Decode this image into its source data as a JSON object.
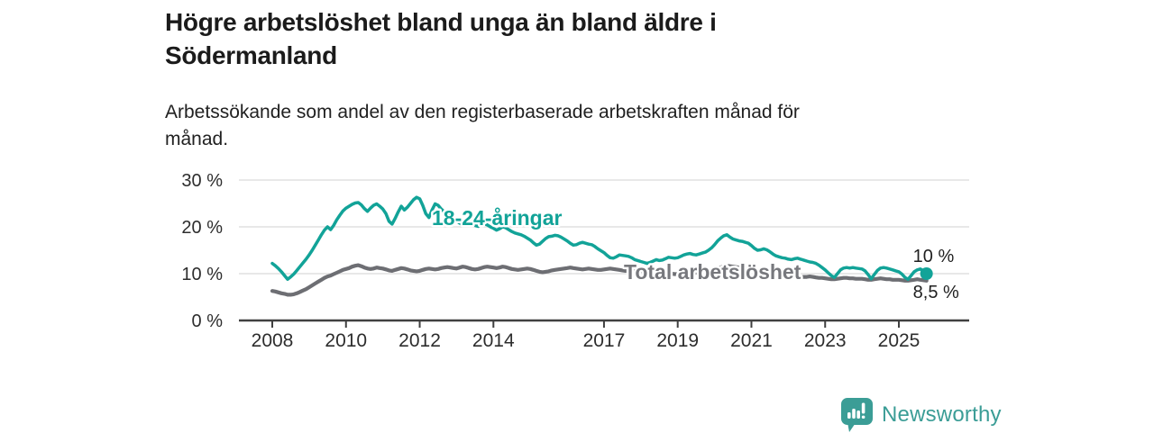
{
  "header": {
    "title_lines": [
      "Högre arbetslöshet bland unga än bland äldre i",
      "Södermanland"
    ],
    "subtitle_lines": [
      "Arbetssökande som andel av den registerbaserade arbetskraften månad för",
      "månad."
    ]
  },
  "footer": {
    "brand": "Newsworthy",
    "brand_color": "#3b9d96",
    "logo_icon": "bar-chart-pin-icon"
  },
  "colors": {
    "background": "#ffffff",
    "grid": "#e4e4e4",
    "axis": "#404040",
    "tick_text": "#2d2d2d",
    "annotation_text": "#1f1f1f"
  },
  "chart_data": {
    "type": "line",
    "title": "Högre arbetslöshet bland unga än bland äldre i Södermanland",
    "subtitle": "Arbetssökande som andel av den registerbaserade arbetskraften månad för månad.",
    "unit": "%",
    "frequency": "monthly",
    "x_start": "2008-01",
    "x_end": "2025-10",
    "x_axis": {
      "tick_labels": [
        "2008",
        "2010",
        "2012",
        "2014",
        "2017",
        "2019",
        "2021",
        "2023",
        "2025"
      ],
      "tick_years": [
        2008,
        2010,
        2012,
        2014,
        2017,
        2019,
        2021,
        2023,
        2025
      ]
    },
    "y_axis": {
      "tick_labels": [
        "0 %",
        "10 %",
        "20 %",
        "30 %"
      ],
      "tick_values": [
        0,
        10,
        20,
        30
      ],
      "ylim": [
        0,
        31
      ],
      "grid": true
    },
    "legend_position": "inline-labels",
    "series": [
      {
        "name": "18-24-åringar",
        "label": {
          "text": "18-24-åringar",
          "color": "#12a398"
        },
        "color": "#12a398",
        "end_label": "10 %",
        "end_value": 10,
        "end_dot": true,
        "values": [
          12.2,
          11.7,
          11.1,
          10.4,
          9.6,
          8.8,
          9.3,
          9.9,
          10.7,
          11.5,
          12.3,
          13.1,
          14.0,
          15.0,
          16.1,
          17.2,
          18.3,
          19.3,
          20.0,
          19.4,
          20.3,
          21.5,
          22.5,
          23.4,
          24.0,
          24.4,
          24.8,
          25.1,
          25.2,
          24.7,
          23.9,
          23.3,
          24.0,
          24.6,
          24.9,
          24.4,
          23.8,
          22.8,
          21.2,
          20.6,
          21.8,
          23.2,
          24.4,
          23.6,
          24.2,
          25.0,
          25.8,
          26.3,
          26.0,
          24.6,
          22.8,
          22.0,
          23.6,
          24.9,
          24.6,
          23.8,
          23.2,
          22.6,
          22.0,
          21.6,
          21.3,
          20.8,
          20.4,
          20.6,
          20.9,
          20.6,
          20.3,
          20.1,
          20.4,
          20.7,
          20.4,
          20.0,
          19.7,
          19.3,
          19.6,
          20.0,
          19.8,
          19.4,
          19.0,
          18.7,
          18.5,
          18.3,
          18.0,
          17.6,
          17.2,
          16.6,
          16.1,
          16.3,
          16.9,
          17.5,
          17.9,
          18.0,
          18.2,
          18.1,
          17.8,
          17.4,
          17.0,
          16.5,
          16.1,
          16.2,
          16.5,
          16.7,
          16.5,
          16.3,
          16.2,
          15.8,
          15.3,
          14.9,
          14.5,
          13.9,
          13.4,
          13.3,
          13.6,
          14.0,
          13.9,
          13.8,
          13.7,
          13.4,
          13.0,
          12.8,
          12.6,
          12.4,
          12.2,
          12.4,
          12.7,
          13.0,
          12.8,
          12.9,
          13.2,
          13.5,
          13.4,
          13.3,
          13.4,
          13.7,
          14.0,
          14.2,
          14.3,
          14.1,
          14.0,
          14.2,
          14.4,
          14.6,
          15.0,
          15.5,
          16.2,
          17.0,
          17.6,
          18.1,
          18.3,
          17.8,
          17.4,
          17.2,
          17.0,
          16.9,
          16.7,
          16.5,
          16.0,
          15.4,
          15.0,
          15.1,
          15.3,
          15.1,
          14.7,
          14.2,
          13.8,
          13.6,
          13.4,
          13.3,
          13.1,
          13.0,
          13.2,
          13.3,
          13.1,
          12.9,
          12.7,
          12.5,
          12.4,
          12.2,
          11.8,
          11.3,
          10.8,
          10.2,
          9.6,
          9.2,
          10.0,
          10.8,
          11.2,
          11.3,
          11.2,
          11.3,
          11.2,
          11.1,
          11.0,
          10.6,
          9.8,
          8.9,
          9.8,
          10.7,
          11.2,
          11.3,
          11.2,
          11.0,
          10.8,
          10.6,
          10.4,
          9.9,
          9.2,
          8.8,
          9.6,
          10.4,
          10.8,
          11.0,
          10.6,
          10.0
        ]
      },
      {
        "name": "Total arbetslöshet",
        "label": {
          "text": "Total arbetslöshet",
          "color": "#77787d"
        },
        "color": "#6d6e73",
        "end_label": "8,5 %",
        "end_value": 8.5,
        "end_dot": false,
        "values": [
          6.3,
          6.2,
          6.0,
          5.8,
          5.7,
          5.5,
          5.5,
          5.6,
          5.8,
          6.1,
          6.4,
          6.7,
          7.1,
          7.5,
          7.9,
          8.3,
          8.7,
          9.1,
          9.4,
          9.6,
          9.9,
          10.2,
          10.5,
          10.8,
          11.0,
          11.2,
          11.5,
          11.7,
          11.8,
          11.6,
          11.3,
          11.1,
          11.0,
          11.1,
          11.3,
          11.2,
          11.1,
          10.9,
          10.7,
          10.6,
          10.8,
          11.0,
          11.2,
          11.1,
          10.9,
          10.7,
          10.6,
          10.5,
          10.6,
          10.8,
          11.0,
          11.1,
          11.0,
          10.9,
          11.0,
          11.2,
          11.3,
          11.4,
          11.3,
          11.2,
          11.1,
          11.3,
          11.5,
          11.4,
          11.2,
          11.0,
          10.9,
          11.0,
          11.2,
          11.4,
          11.5,
          11.4,
          11.3,
          11.2,
          11.3,
          11.5,
          11.4,
          11.2,
          11.0,
          10.9,
          10.8,
          10.9,
          11.0,
          11.1,
          11.0,
          10.8,
          10.6,
          10.4,
          10.3,
          10.4,
          10.5,
          10.7,
          10.8,
          10.9,
          11.0,
          11.1,
          11.2,
          11.3,
          11.2,
          11.1,
          11.0,
          10.9,
          11.0,
          11.1,
          11.0,
          10.9,
          10.8,
          10.8,
          10.9,
          11.0,
          11.1,
          11.0,
          10.9,
          10.8,
          10.7,
          10.6,
          10.6,
          10.7,
          10.8,
          10.7,
          10.6,
          10.4,
          10.3,
          10.2,
          10.1,
          10.0,
          10.0,
          10.1,
          10.2,
          10.1,
          10.0,
          9.9,
          9.9,
          9.8,
          9.8,
          9.9,
          10.0,
          10.1,
          10.2,
          10.3,
          10.3,
          10.4,
          10.5,
          10.6,
          10.8,
          11.0,
          11.3,
          11.6,
          11.7,
          11.6,
          11.5,
          11.4,
          11.3,
          11.2,
          11.1,
          11.0,
          10.9,
          10.7,
          10.5,
          10.3,
          10.1,
          10.0,
          9.9,
          9.8,
          9.7,
          9.6,
          9.5,
          9.4,
          9.4,
          9.3,
          9.3,
          9.2,
          9.2,
          9.3,
          9.3,
          9.4,
          9.3,
          9.2,
          9.1,
          9.1,
          9.0,
          8.9,
          8.8,
          8.8,
          8.9,
          9.0,
          9.1,
          9.1,
          9.0,
          9.0,
          8.9,
          8.9,
          8.9,
          8.8,
          8.7,
          8.7,
          8.8,
          8.9,
          9.0,
          8.9,
          8.8,
          8.8,
          8.7,
          8.7,
          8.7,
          8.6,
          8.5,
          8.5,
          8.6,
          8.7,
          8.8,
          8.7,
          8.6,
          8.5
        ]
      }
    ]
  }
}
